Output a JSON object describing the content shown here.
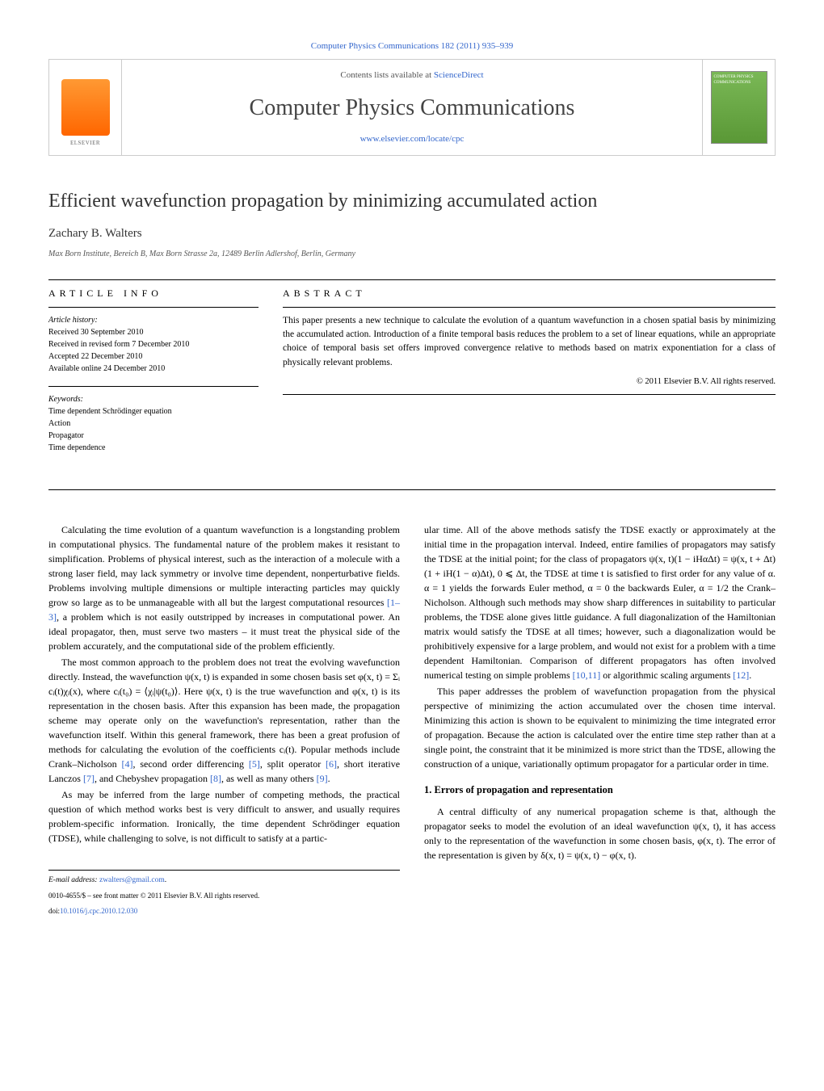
{
  "citation": "Computer Physics Communications 182 (2011) 935–939",
  "header": {
    "contents_prefix": "Contents lists available at ",
    "contents_link": "ScienceDirect",
    "journal_name": "Computer Physics Communications",
    "journal_url": "www.elsevier.com/locate/cpc",
    "publisher": "ELSEVIER",
    "cover_title": "COMPUTER PHYSICS COMMUNICATIONS"
  },
  "article": {
    "title": "Efficient wavefunction propagation by minimizing accumulated action",
    "author": "Zachary B. Walters",
    "affiliation": "Max Born Institute, Bereich B, Max Born Strasse 2a, 12489 Berlin Adlershof, Berlin, Germany"
  },
  "article_info": {
    "heading": "ARTICLE INFO",
    "history_label": "Article history:",
    "history": [
      "Received 30 September 2010",
      "Received in revised form 7 December 2010",
      "Accepted 22 December 2010",
      "Available online 24 December 2010"
    ],
    "keywords_label": "Keywords:",
    "keywords": [
      "Time dependent Schrödinger equation",
      "Action",
      "Propagator",
      "Time dependence"
    ]
  },
  "abstract": {
    "heading": "ABSTRACT",
    "text": "This paper presents a new technique to calculate the evolution of a quantum wavefunction in a chosen spatial basis by minimizing the accumulated action. Introduction of a finite temporal basis reduces the problem to a set of linear equations, while an appropriate choice of temporal basis set offers improved convergence relative to methods based on matrix exponentiation for a class of physically relevant problems.",
    "copyright": "© 2011 Elsevier B.V. All rights reserved."
  },
  "body": {
    "left": {
      "p1": "Calculating the time evolution of a quantum wavefunction is a longstanding problem in computational physics. The fundamental nature of the problem makes it resistant to simplification. Problems of physical interest, such as the interaction of a molecule with a strong laser field, may lack symmetry or involve time dependent, nonperturbative fields. Problems involving multiple dimensions or multiple interacting particles may quickly grow so large as to be unmanageable with all but the largest computational resources ",
      "p1_ref": "[1–3]",
      "p1_end": ", a problem which is not easily outstripped by increases in computational power. An ideal propagator, then, must serve two masters – it must treat the physical side of the problem accurately, and the computational side of the problem efficiently.",
      "p2_a": "The most common approach to the problem does not treat the evolving wavefunction directly. Instead, the wavefunction ψ(x, t) is expanded in some chosen basis set φ(x, t) = Σᵢ cᵢ(t)χᵢ(x), where cᵢ(t₀) = ⟨χᵢ|ψ(t₀)⟩. Here ψ(x, t) is the true wavefunction and φ(x, t) is its representation in the chosen basis. After this expansion has been made, the propagation scheme may operate only on the wavefunction's representation, rather than the wavefunction itself. Within this general framework, there has been a great profusion of methods for calculating the evolution of the coefficients cᵢ(t). Popular methods include Crank–Nicholson ",
      "p2_ref1": "[4]",
      "p2_b": ", second order differencing ",
      "p2_ref2": "[5]",
      "p2_c": ", split operator ",
      "p2_ref3": "[6]",
      "p2_d": ", short iterative Lanczos ",
      "p2_ref4": "[7]",
      "p2_e": ", and Chebyshev propagation ",
      "p2_ref5": "[8]",
      "p2_f": ", as well as many others ",
      "p2_ref6": "[9]",
      "p2_g": ".",
      "p3": "As may be inferred from the large number of competing methods, the practical question of which method works best is very difficult to answer, and usually requires problem-specific information. Ironically, the time dependent Schrödinger equation (TDSE), while challenging to solve, is not difficult to satisfy at a partic-"
    },
    "right": {
      "p1_a": "ular time. All of the above methods satisfy the TDSE exactly or approximately at the initial time in the propagation interval. Indeed, entire families of propagators may satisfy the TDSE at the initial point; for the class of propagators ψ(x, t)(1 − iHαΔt) = ψ(x, t + Δt)(1 + iH(1 − α)Δt), 0 ⩽ Δt, the TDSE at time t is satisfied to first order for any value of α. α = 1 yields the forwards Euler method, α = 0 the backwards Euler, α = 1/2 the Crank–Nicholson. Although such methods may show sharp differences in suitability to particular problems, the TDSE alone gives little guidance. A full diagonalization of the Hamiltonian matrix would satisfy the TDSE at all times; however, such a diagonalization would be prohibitively expensive for a large problem, and would not exist for a problem with a time dependent Hamiltonian. Comparison of different propagators has often involved numerical testing on simple problems ",
      "p1_ref1": "[10,11]",
      "p1_b": " or algorithmic scaling arguments ",
      "p1_ref2": "[12]",
      "p1_c": ".",
      "p2": "This paper addresses the problem of wavefunction propagation from the physical perspective of minimizing the action accumulated over the chosen time interval. Minimizing this action is shown to be equivalent to minimizing the time integrated error of propagation. Because the action is calculated over the entire time step rather than at a single point, the constraint that it be minimized is more strict than the TDSE, allowing the construction of a unique, variationally optimum propagator for a particular order in time.",
      "section1_title": "1. Errors of propagation and representation",
      "p3": "A central difficulty of any numerical propagation scheme is that, although the propagator seeks to model the evolution of an ideal wavefunction ψ(x, t), it has access only to the representation of the wavefunction in some chosen basis, φ(x, t). The error of the representation is given by δ(x, t) = ψ(x, t) − φ(x, t)."
    }
  },
  "footer": {
    "email_label": "E-mail address:",
    "email": "zwalters@gmail.com",
    "issn_line": "0010-4655/$ – see front matter © 2011 Elsevier B.V. All rights reserved.",
    "doi_prefix": "doi:",
    "doi": "10.1016/j.cpc.2010.12.030"
  },
  "colors": {
    "link": "#3366cc",
    "text": "#000000",
    "heading": "#333333",
    "border": "#cccccc",
    "elsevier_orange": "#ff6600",
    "cover_green": "#7ab856"
  }
}
